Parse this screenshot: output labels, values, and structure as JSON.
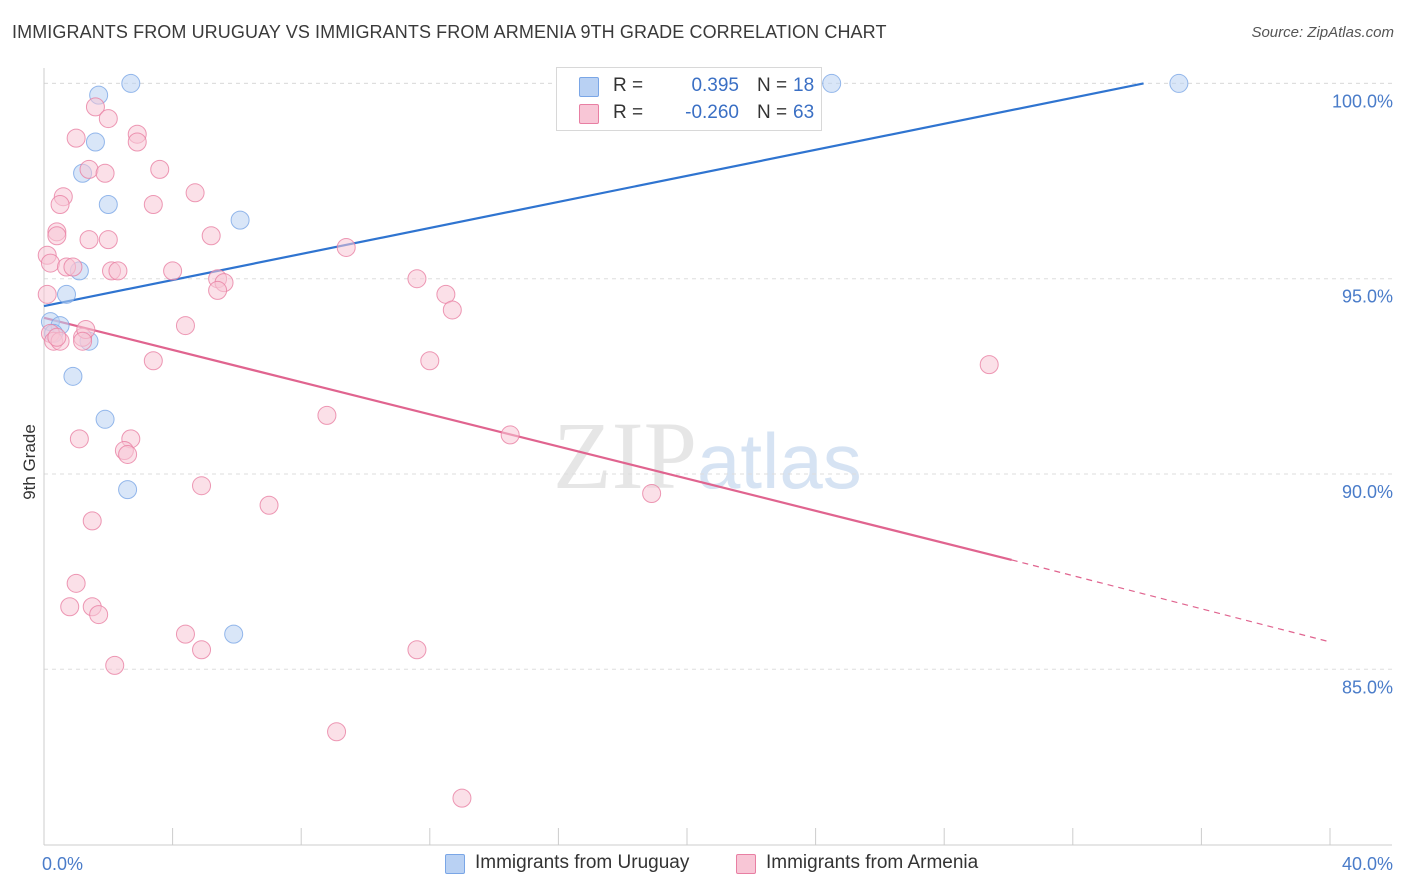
{
  "header": {
    "title": "IMMIGRANTS FROM URUGUAY VS IMMIGRANTS FROM ARMENIA 9TH GRADE CORRELATION CHART",
    "source": "Source: ZipAtlas.com"
  },
  "watermark": {
    "zip": "ZIP",
    "atlas": "atlas"
  },
  "legend": {
    "r_label": "R =",
    "n_label": "N =",
    "series": [
      {
        "name": "Immigrants from Uruguay",
        "r": "0.395",
        "n": "18",
        "color": "#7aa6e6",
        "fill": "#b9d1f3"
      },
      {
        "name": "Immigrants from Armenia",
        "r": "-0.260",
        "n": "63",
        "color": "#e87fa3",
        "fill": "#f8c6d6"
      }
    ]
  },
  "colors": {
    "blue_line": "#2f74d0",
    "pink_line": "#e0648f",
    "grid": "#dddddd",
    "tick": "#4a7cc9"
  },
  "chart_data": {
    "type": "scatter",
    "title": "IMMIGRANTS FROM URUGUAY VS IMMIGRANTS FROM ARMENIA 9TH GRADE CORRELATION CHART",
    "xlabel": "",
    "ylabel": "9th Grade",
    "xlim": [
      0,
      40
    ],
    "ylim": [
      80.5,
      100.6
    ],
    "x_tick_labels": [
      "0.0%",
      "40.0%"
    ],
    "y_ticks": [
      85,
      90,
      95,
      100
    ],
    "y_tick_labels": [
      "85.0%",
      "90.0%",
      "95.0%",
      "100.0%"
    ],
    "series": [
      {
        "name": "Immigrants from Uruguay",
        "points": [
          [
            1.7,
            99.7
          ],
          [
            2.7,
            100.0
          ],
          [
            1.6,
            98.5
          ],
          [
            1.2,
            97.7
          ],
          [
            2.0,
            96.9
          ],
          [
            6.1,
            96.5
          ],
          [
            1.1,
            95.2
          ],
          [
            0.7,
            94.6
          ],
          [
            0.2,
            93.9
          ],
          [
            0.5,
            93.8
          ],
          [
            1.4,
            93.4
          ],
          [
            0.9,
            92.5
          ],
          [
            1.9,
            91.4
          ],
          [
            2.6,
            89.6
          ],
          [
            5.9,
            85.9
          ],
          [
            24.5,
            100.0
          ],
          [
            35.3,
            100.0
          ],
          [
            0.3,
            93.6
          ]
        ],
        "trend": {
          "x0": 0,
          "y0": 94.3,
          "x1": 34.2,
          "y1": 100.0
        }
      },
      {
        "name": "Immigrants from Armenia",
        "points": [
          [
            1.6,
            99.4
          ],
          [
            2.0,
            99.1
          ],
          [
            1.0,
            98.6
          ],
          [
            2.9,
            98.7
          ],
          [
            2.9,
            98.5
          ],
          [
            1.4,
            97.8
          ],
          [
            1.9,
            97.7
          ],
          [
            3.6,
            97.8
          ],
          [
            0.6,
            97.1
          ],
          [
            4.7,
            97.2
          ],
          [
            0.5,
            96.9
          ],
          [
            3.4,
            96.9
          ],
          [
            0.4,
            96.2
          ],
          [
            0.4,
            96.1
          ],
          [
            1.4,
            96.0
          ],
          [
            2.0,
            96.0
          ],
          [
            5.2,
            96.1
          ],
          [
            9.4,
            95.8
          ],
          [
            0.1,
            95.6
          ],
          [
            0.2,
            95.4
          ],
          [
            0.7,
            95.3
          ],
          [
            0.9,
            95.3
          ],
          [
            2.1,
            95.2
          ],
          [
            2.3,
            95.2
          ],
          [
            4.0,
            95.2
          ],
          [
            5.4,
            95.0
          ],
          [
            5.6,
            94.9
          ],
          [
            5.4,
            94.7
          ],
          [
            11.6,
            95.0
          ],
          [
            12.5,
            94.6
          ],
          [
            12.7,
            94.2
          ],
          [
            0.1,
            94.6
          ],
          [
            4.4,
            93.8
          ],
          [
            0.2,
            93.6
          ],
          [
            1.2,
            93.5
          ],
          [
            1.3,
            93.7
          ],
          [
            0.3,
            93.4
          ],
          [
            0.5,
            93.4
          ],
          [
            3.4,
            92.9
          ],
          [
            12.0,
            92.9
          ],
          [
            29.4,
            92.8
          ],
          [
            8.8,
            91.5
          ],
          [
            14.5,
            91.0
          ],
          [
            1.1,
            90.9
          ],
          [
            2.7,
            90.9
          ],
          [
            2.5,
            90.6
          ],
          [
            2.6,
            90.5
          ],
          [
            4.9,
            89.7
          ],
          [
            7.0,
            89.2
          ],
          [
            18.9,
            89.5
          ],
          [
            1.5,
            88.8
          ],
          [
            1.0,
            87.2
          ],
          [
            0.8,
            86.6
          ],
          [
            1.5,
            86.6
          ],
          [
            1.7,
            86.4
          ],
          [
            4.4,
            85.9
          ],
          [
            4.9,
            85.5
          ],
          [
            11.6,
            85.5
          ],
          [
            2.2,
            85.1
          ],
          [
            9.1,
            83.4
          ],
          [
            13.0,
            81.7
          ],
          [
            0.4,
            93.5
          ],
          [
            1.2,
            93.4
          ]
        ],
        "trend": {
          "x0": 0,
          "y0": 94.0,
          "x1": 30.1,
          "y1": 87.8
        },
        "trend_dashed": {
          "x0": 30.1,
          "y0": 87.8,
          "x1": 40.0,
          "y1": 85.7
        }
      }
    ]
  }
}
